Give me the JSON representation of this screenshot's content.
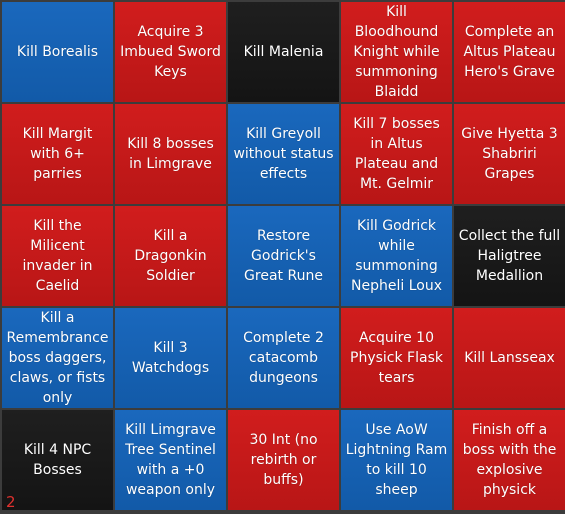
{
  "colors": {
    "red": "#c81a1a",
    "blue": "#1664b4",
    "black": "#1a1a1a",
    "grid": "#3c3c3c",
    "corner_number": "#e0312e"
  },
  "board": {
    "corner_number": "2",
    "cells": [
      {
        "text": "Kill Borealis",
        "color": "blue"
      },
      {
        "text": "Acquire 3 Imbued Sword Keys",
        "color": "red"
      },
      {
        "text": "Kill Malenia",
        "color": "black"
      },
      {
        "text": "Kill Bloodhound Knight while summoning Blaidd",
        "color": "red"
      },
      {
        "text": "Complete an Altus Plateau Hero's Grave",
        "color": "red"
      },
      {
        "text": "Kill Margit with 6+ parries",
        "color": "red"
      },
      {
        "text": "Kill 8 bosses in Limgrave",
        "color": "red"
      },
      {
        "text": "Kill Greyoll without status effects",
        "color": "blue"
      },
      {
        "text": "Kill 7 bosses in Altus Plateau and Mt. Gelmir",
        "color": "red"
      },
      {
        "text": "Give Hyetta 3 Shabriri Grapes",
        "color": "red"
      },
      {
        "text": "Kill the Milicent invader in Caelid",
        "color": "red"
      },
      {
        "text": "Kill a Dragonkin Soldier",
        "color": "red"
      },
      {
        "text": "Restore Godrick's Great Rune",
        "color": "blue"
      },
      {
        "text": "Kill Godrick while summoning Nepheli Loux",
        "color": "blue"
      },
      {
        "text": "Collect the full Haligtree Medallion",
        "color": "black"
      },
      {
        "text": "Kill a Remembrance boss daggers, claws, or fists only",
        "color": "blue"
      },
      {
        "text": "Kill 3 Watchdogs",
        "color": "blue"
      },
      {
        "text": "Complete 2 catacomb dungeons",
        "color": "blue"
      },
      {
        "text": "Acquire 10 Physick Flask tears",
        "color": "red"
      },
      {
        "text": "Kill Lansseax",
        "color": "red"
      },
      {
        "text": "Kill 4 NPC Bosses",
        "color": "black"
      },
      {
        "text": "Kill Limgrave Tree Sentinel with a +0 weapon only",
        "color": "blue"
      },
      {
        "text": "30 Int (no rebirth or buffs)",
        "color": "red"
      },
      {
        "text": "Use AoW Lightning Ram to kill 10 sheep",
        "color": "blue"
      },
      {
        "text": "Finish off a boss with the explosive physick",
        "color": "red"
      }
    ]
  }
}
